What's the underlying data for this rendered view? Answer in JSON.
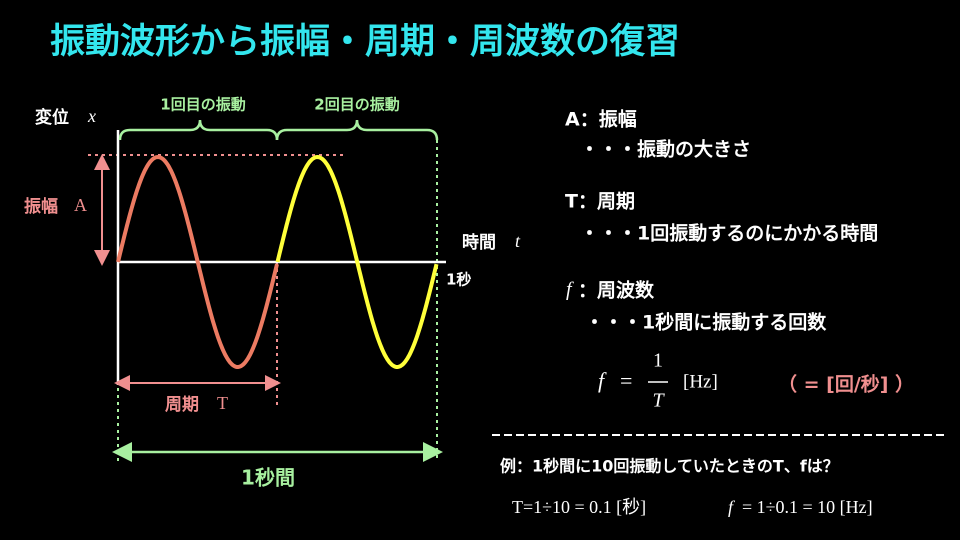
{
  "title": "振動波形から振幅・周期・周波数の復習",
  "graph": {
    "y_axis_label": "変位",
    "y_axis_symbol": "x",
    "x_axis_label": "時間",
    "x_axis_symbol": "t",
    "one_second_tick": "1秒",
    "first_cycle": "1回目の振動",
    "second_cycle": "2回目の振動",
    "amplitude_label": "振幅",
    "amplitude_symbol": "A",
    "period_label": "周期",
    "period_symbol": "T",
    "one_second_span": "1秒間"
  },
  "definitions": [
    {
      "term": "A：振幅",
      "description": "・・・振動の大きさ"
    },
    {
      "term": "T：周期",
      "description": "・・・1回振動するのにかかる時間"
    },
    {
      "symbol": "f",
      "term": "：周波数",
      "description": "・・・1秒間に振動する回数"
    }
  ],
  "formula": {
    "lhs": "f",
    "equals": "=",
    "numerator": "1",
    "denominator": "T",
    "unit": "[Hz]",
    "note": "（ = [回/秒] ）"
  },
  "example": {
    "question": "例：1秒間に10回振動していたときのT、fは？",
    "answer_t": "T=1÷10 = 0.1 [秒]",
    "answer_f_symbol": "f",
    "answer_f": "= 1÷0.1 = 10 [Hz]"
  }
}
